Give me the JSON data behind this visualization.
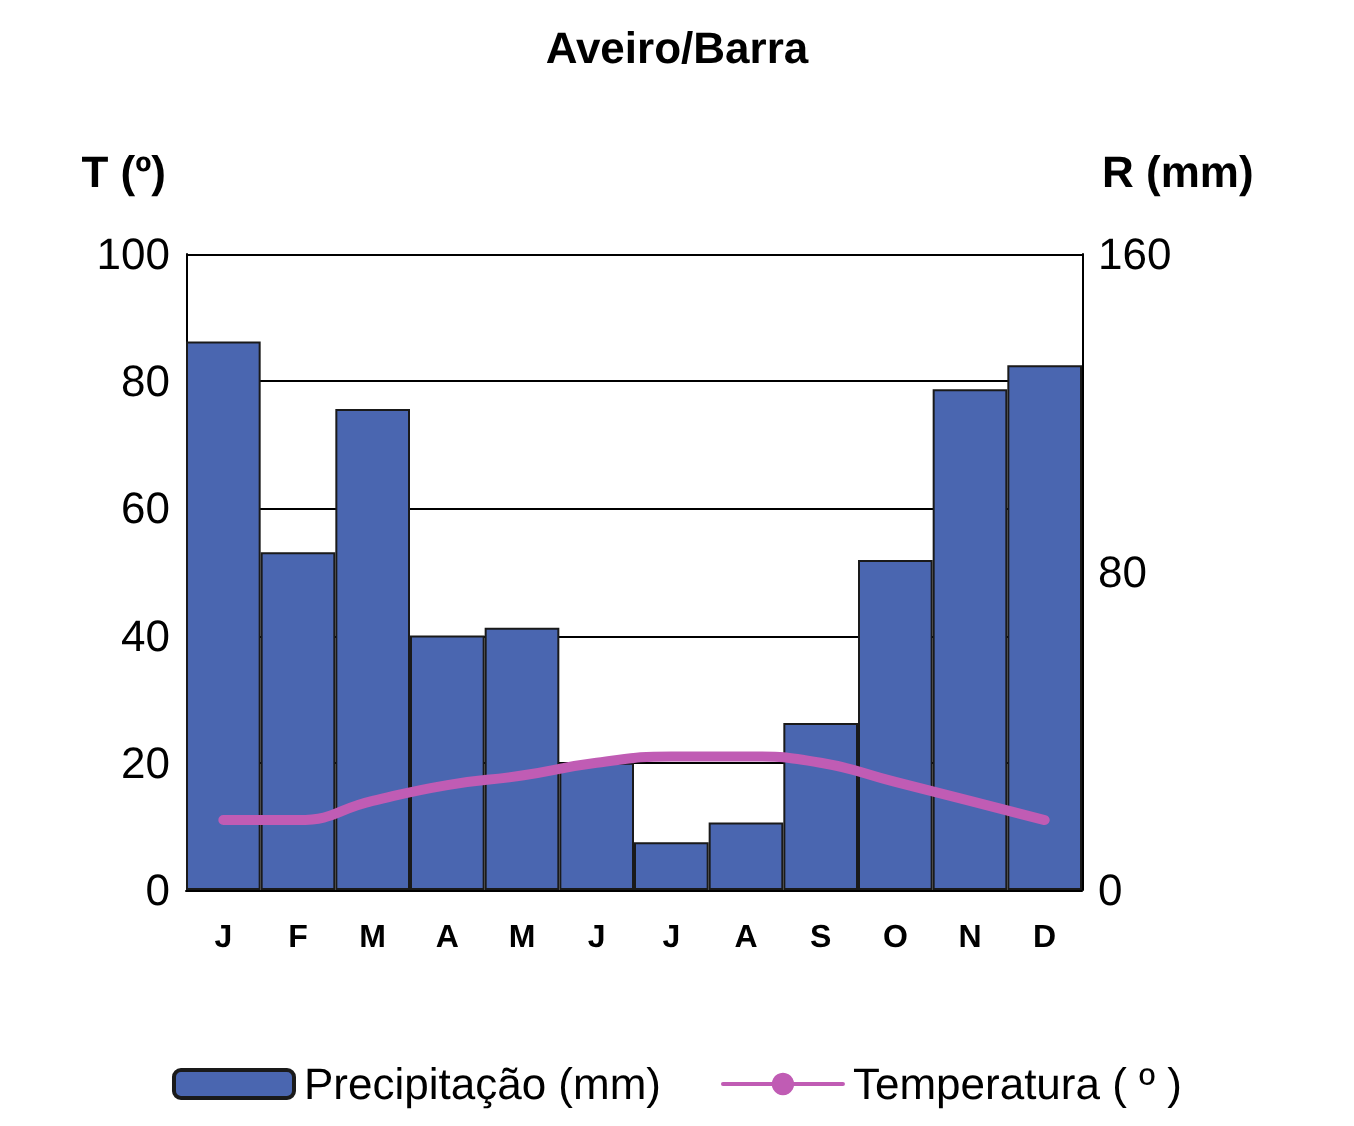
{
  "chart_data": {
    "type": "bar",
    "title": "Aveiro/Barra",
    "ylabel": "T (º)",
    "y2label": "R (mm)",
    "categories": [
      "J",
      "F",
      "M",
      "A",
      "M",
      "J",
      "J",
      "A",
      "S",
      "O",
      "N",
      "D"
    ],
    "series": [
      {
        "name": "Precipitação (mm)",
        "axis": "y2",
        "color": "#4a66b0",
        "values": [
          138,
          85,
          121,
          64,
          66,
          32,
          12,
          17,
          42,
          83,
          126,
          132
        ]
      },
      {
        "name": "Temperatura ( º )",
        "type": "line",
        "axis": "y",
        "color": "#c05cb4",
        "values": [
          11,
          11,
          14,
          16.5,
          18,
          20,
          21,
          21,
          20,
          17,
          14,
          11
        ]
      }
    ],
    "ylim": [
      0,
      100
    ],
    "yticks": [
      0,
      20,
      40,
      60,
      80,
      100
    ],
    "y2lim": [
      0,
      160
    ],
    "y2ticks": [
      0,
      80,
      160
    ],
    "grid": "y",
    "legend": "bottom",
    "marker": "none",
    "line_style": "solid"
  }
}
